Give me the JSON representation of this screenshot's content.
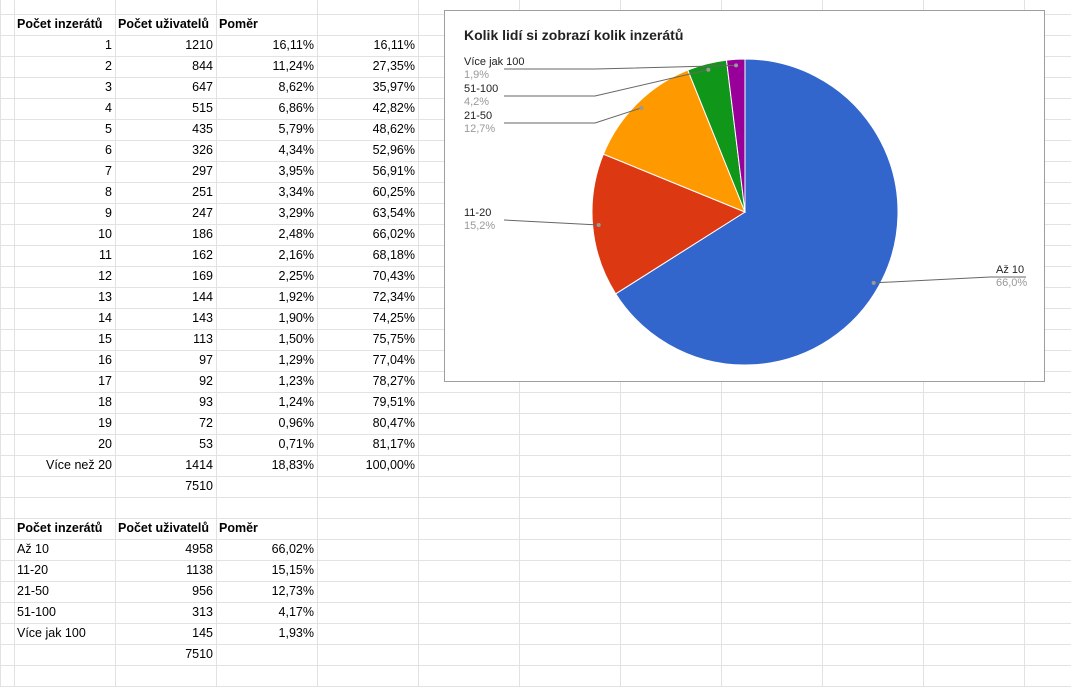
{
  "table1": {
    "headers": [
      "Počet inzerátů",
      "Počet uživatelů",
      "Poměr",
      ""
    ],
    "rows": [
      [
        "1",
        "1210",
        "16,11%",
        "16,11%"
      ],
      [
        "2",
        "844",
        "11,24%",
        "27,35%"
      ],
      [
        "3",
        "647",
        "8,62%",
        "35,97%"
      ],
      [
        "4",
        "515",
        "6,86%",
        "42,82%"
      ],
      [
        "5",
        "435",
        "5,79%",
        "48,62%"
      ],
      [
        "6",
        "326",
        "4,34%",
        "52,96%"
      ],
      [
        "7",
        "297",
        "3,95%",
        "56,91%"
      ],
      [
        "8",
        "251",
        "3,34%",
        "60,25%"
      ],
      [
        "9",
        "247",
        "3,29%",
        "63,54%"
      ],
      [
        "10",
        "186",
        "2,48%",
        "66,02%"
      ],
      [
        "11",
        "162",
        "2,16%",
        "68,18%"
      ],
      [
        "12",
        "169",
        "2,25%",
        "70,43%"
      ],
      [
        "13",
        "144",
        "1,92%",
        "72,34%"
      ],
      [
        "14",
        "143",
        "1,90%",
        "74,25%"
      ],
      [
        "15",
        "113",
        "1,50%",
        "75,75%"
      ],
      [
        "16",
        "97",
        "1,29%",
        "77,04%"
      ],
      [
        "17",
        "92",
        "1,23%",
        "78,27%"
      ],
      [
        "18",
        "93",
        "1,24%",
        "79,51%"
      ],
      [
        "19",
        "72",
        "0,96%",
        "80,47%"
      ],
      [
        "20",
        "53",
        "0,71%",
        "81,17%"
      ],
      [
        "Více než 20",
        "1414",
        "18,83%",
        "100,00%"
      ]
    ],
    "total": "7510"
  },
  "table2": {
    "headers": [
      "Počet inzerátů",
      "Počet uživatelů",
      "Poměr"
    ],
    "rows": [
      [
        "Až 10",
        "4958",
        "66,02%"
      ],
      [
        "11-20",
        "1138",
        "15,15%"
      ],
      [
        "21-50",
        "956",
        "12,73%"
      ],
      [
        "51-100",
        "313",
        "4,17%"
      ],
      [
        "Více jak 100",
        "145",
        "1,93%"
      ]
    ],
    "total": "7510"
  },
  "chart_data": {
    "type": "pie",
    "title": "Kolik lidí si zobrazí kolik inzerátů",
    "categories": [
      "Až 10",
      "11-20",
      "21-50",
      "51-100",
      "Více jak 100"
    ],
    "values": [
      4958,
      1138,
      956,
      313,
      145
    ],
    "percent_labels": [
      "66,0%",
      "15,2%",
      "12,7%",
      "4,2%",
      "1,9%"
    ],
    "colors": [
      "#3366cc",
      "#dc3912",
      "#ff9900",
      "#109618",
      "#990099"
    ],
    "start": "12 o'clock, clockwise",
    "labels": "outside with leader lines"
  }
}
